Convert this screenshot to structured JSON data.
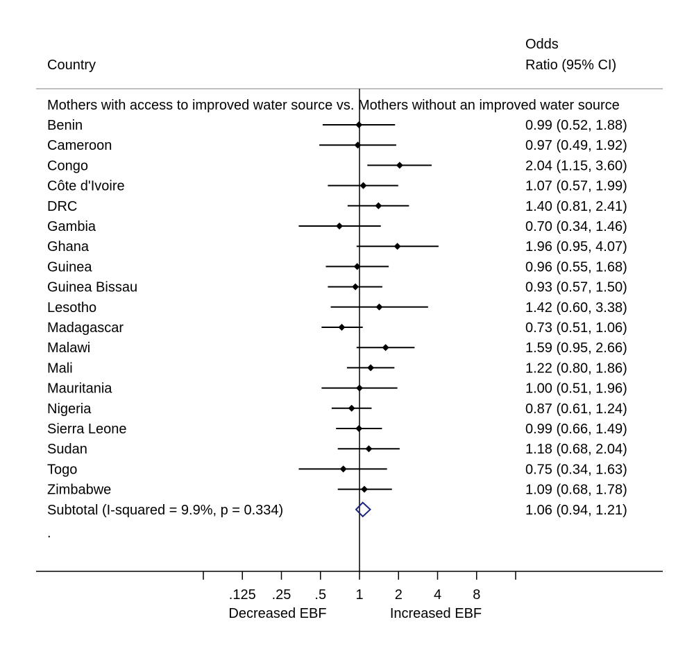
{
  "chart_data": {
    "type": "forest",
    "header": {
      "country": "Country",
      "or_line1": "Odds",
      "or_line2": "Ratio (95% CI)"
    },
    "group_label": "Mothers with access to improved water source vs. Mothers without an improved water source",
    "rows": [
      {
        "label": "Benin",
        "or": 0.99,
        "lo": 0.52,
        "hi": 1.88,
        "text": "0.99 (0.52, 1.88)"
      },
      {
        "label": "Cameroon",
        "or": 0.97,
        "lo": 0.49,
        "hi": 1.92,
        "text": "0.97 (0.49, 1.92)"
      },
      {
        "label": "Congo",
        "or": 2.04,
        "lo": 1.15,
        "hi": 3.6,
        "text": "2.04 (1.15, 3.60)"
      },
      {
        "label": "Côte d'Ivoire",
        "or": 1.07,
        "lo": 0.57,
        "hi": 1.99,
        "text": "1.07 (0.57, 1.99)"
      },
      {
        "label": "DRC",
        "or": 1.4,
        "lo": 0.81,
        "hi": 2.41,
        "text": "1.40 (0.81, 2.41)"
      },
      {
        "label": "Gambia",
        "or": 0.7,
        "lo": 0.34,
        "hi": 1.46,
        "text": "0.70 (0.34, 1.46)"
      },
      {
        "label": "Ghana",
        "or": 1.96,
        "lo": 0.95,
        "hi": 4.07,
        "text": "1.96 (0.95, 4.07)"
      },
      {
        "label": "Guinea",
        "or": 0.96,
        "lo": 0.55,
        "hi": 1.68,
        "text": "0.96 (0.55, 1.68)"
      },
      {
        "label": "Guinea Bissau",
        "or": 0.93,
        "lo": 0.57,
        "hi": 1.5,
        "text": "0.93 (0.57, 1.50)"
      },
      {
        "label": "Lesotho",
        "or": 1.42,
        "lo": 0.6,
        "hi": 3.38,
        "text": "1.42 (0.60, 3.38)"
      },
      {
        "label": "Madagascar",
        "or": 0.73,
        "lo": 0.51,
        "hi": 1.06,
        "text": "0.73 (0.51, 1.06)"
      },
      {
        "label": "Malawi",
        "or": 1.59,
        "lo": 0.95,
        "hi": 2.66,
        "text": "1.59 (0.95, 2.66)"
      },
      {
        "label": "Mali",
        "or": 1.22,
        "lo": 0.8,
        "hi": 1.86,
        "text": "1.22 (0.80, 1.86)"
      },
      {
        "label": "Mauritania",
        "or": 1.0,
        "lo": 0.51,
        "hi": 1.96,
        "text": "1.00 (0.51, 1.96)"
      },
      {
        "label": "Nigeria",
        "or": 0.87,
        "lo": 0.61,
        "hi": 1.24,
        "text": "0.87 (0.61, 1.24)"
      },
      {
        "label": "Sierra Leone",
        "or": 0.99,
        "lo": 0.66,
        "hi": 1.49,
        "text": "0.99 (0.66, 1.49)"
      },
      {
        "label": "Sudan",
        "or": 1.18,
        "lo": 0.68,
        "hi": 2.04,
        "text": "1.18 (0.68, 2.04)"
      },
      {
        "label": "Togo",
        "or": 0.75,
        "lo": 0.34,
        "hi": 1.63,
        "text": "0.75 (0.34, 1.63)"
      },
      {
        "label": "Zimbabwe",
        "or": 1.09,
        "lo": 0.68,
        "hi": 1.78,
        "text": "1.09 (0.68, 1.78)"
      }
    ],
    "subtotal": {
      "label": "Subtotal  (I-squared = 9.9%, p = 0.334)",
      "or": 1.06,
      "lo": 0.94,
      "hi": 1.21,
      "text": "1.06 (0.94, 1.21)"
    },
    "trailing_label": ".",
    "x_scale": "log",
    "xlim": [
      0.0625,
      16
    ],
    "ticks": [
      0.0625,
      0.125,
      0.25,
      0.5,
      1,
      2,
      4,
      8,
      16
    ],
    "tick_labels": [
      "",
      ".125",
      ".25",
      ".5",
      "1",
      "2",
      "4",
      "8",
      ""
    ],
    "reference_line": 1,
    "xlabel_left": "Decreased EBF",
    "xlabel_right": "Increased EBF",
    "colors": {
      "marker": "#000000",
      "subtotal_diamond": "#1a237e"
    }
  }
}
